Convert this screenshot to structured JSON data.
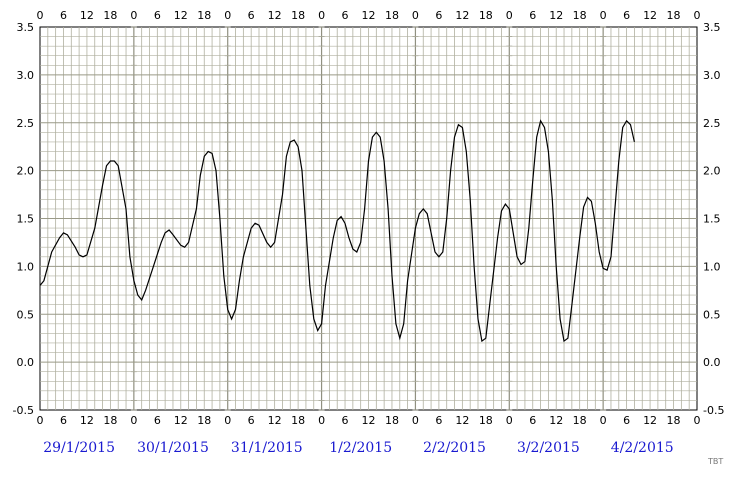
{
  "chart_data": {
    "type": "line",
    "title": "",
    "xlabel": "",
    "ylabel": "",
    "ylim": [
      -0.5,
      3.5
    ],
    "y_ticks": [
      "-0.5",
      "0.0",
      "0.5",
      "1.0",
      "1.5",
      "2.0",
      "2.5",
      "3.0",
      "3.5"
    ],
    "x_unit": "hours",
    "xlim": [
      0,
      168
    ],
    "hour_tick_labels": [
      "0",
      "6",
      "12",
      "18"
    ],
    "end_label": "0",
    "dates": [
      "29/1/2015",
      "30/1/2015",
      "31/1/2015",
      "1/2/2015",
      "2/2/2015",
      "3/2/2015",
      "4/2/2015"
    ],
    "grid": true,
    "colors": {
      "background": "#ffffff",
      "grid": "#b0b0a0",
      "line": "#000000",
      "dates": "#1a1ad0"
    },
    "series": [
      {
        "points": [
          [
            0,
            0.8
          ],
          [
            1,
            0.85
          ],
          [
            3,
            1.15
          ],
          [
            5,
            1.3
          ],
          [
            6,
            1.35
          ],
          [
            7,
            1.33
          ],
          [
            9,
            1.2
          ],
          [
            10,
            1.12
          ],
          [
            11,
            1.1
          ],
          [
            12,
            1.12
          ],
          [
            14,
            1.4
          ],
          [
            16,
            1.85
          ],
          [
            17,
            2.05
          ],
          [
            18,
            2.1
          ],
          [
            19,
            2.1
          ],
          [
            20,
            2.05
          ],
          [
            22,
            1.6
          ],
          [
            23,
            1.1
          ],
          [
            24,
            0.85
          ],
          [
            25,
            0.7
          ],
          [
            26,
            0.65
          ],
          [
            27,
            0.75
          ],
          [
            29,
            1.0
          ],
          [
            31,
            1.25
          ],
          [
            32,
            1.35
          ],
          [
            33,
            1.38
          ],
          [
            34,
            1.33
          ],
          [
            36,
            1.22
          ],
          [
            37,
            1.2
          ],
          [
            38,
            1.25
          ],
          [
            40,
            1.6
          ],
          [
            41,
            1.95
          ],
          [
            42,
            2.15
          ],
          [
            43,
            2.2
          ],
          [
            44,
            2.18
          ],
          [
            45,
            2.0
          ],
          [
            46,
            1.5
          ],
          [
            47,
            0.9
          ],
          [
            48,
            0.55
          ],
          [
            49,
            0.45
          ],
          [
            50,
            0.55
          ],
          [
            51,
            0.85
          ],
          [
            52,
            1.1
          ],
          [
            54,
            1.4
          ],
          [
            55,
            1.45
          ],
          [
            56,
            1.43
          ],
          [
            58,
            1.25
          ],
          [
            59,
            1.2
          ],
          [
            60,
            1.25
          ],
          [
            62,
            1.75
          ],
          [
            63,
            2.15
          ],
          [
            64,
            2.3
          ],
          [
            65,
            2.32
          ],
          [
            66,
            2.25
          ],
          [
            67,
            2.0
          ],
          [
            68,
            1.4
          ],
          [
            69,
            0.8
          ],
          [
            70,
            0.45
          ],
          [
            71,
            0.33
          ],
          [
            72,
            0.4
          ],
          [
            73,
            0.8
          ],
          [
            75,
            1.3
          ],
          [
            76,
            1.48
          ],
          [
            77,
            1.52
          ],
          [
            78,
            1.45
          ],
          [
            79,
            1.3
          ],
          [
            80,
            1.18
          ],
          [
            81,
            1.15
          ],
          [
            82,
            1.25
          ],
          [
            83,
            1.6
          ],
          [
            84,
            2.1
          ],
          [
            85,
            2.35
          ],
          [
            86,
            2.4
          ],
          [
            87,
            2.35
          ],
          [
            88,
            2.1
          ],
          [
            89,
            1.6
          ],
          [
            90,
            0.9
          ],
          [
            91,
            0.4
          ],
          [
            92,
            0.25
          ],
          [
            93,
            0.4
          ],
          [
            94,
            0.85
          ],
          [
            96,
            1.4
          ],
          [
            97,
            1.55
          ],
          [
            98,
            1.6
          ],
          [
            99,
            1.55
          ],
          [
            100,
            1.35
          ],
          [
            101,
            1.15
          ],
          [
            102,
            1.1
          ],
          [
            103,
            1.15
          ],
          [
            104,
            1.5
          ],
          [
            105,
            2.0
          ],
          [
            106,
            2.35
          ],
          [
            107,
            2.48
          ],
          [
            108,
            2.45
          ],
          [
            109,
            2.2
          ],
          [
            110,
            1.7
          ],
          [
            111,
            1.0
          ],
          [
            112,
            0.45
          ],
          [
            113,
            0.22
          ],
          [
            114,
            0.25
          ],
          [
            115,
            0.6
          ],
          [
            117,
            1.3
          ],
          [
            118,
            1.58
          ],
          [
            119,
            1.65
          ],
          [
            120,
            1.6
          ],
          [
            121,
            1.35
          ],
          [
            122,
            1.1
          ],
          [
            123,
            1.02
          ],
          [
            124,
            1.05
          ],
          [
            125,
            1.4
          ],
          [
            126,
            1.9
          ],
          [
            127,
            2.35
          ],
          [
            128,
            2.52
          ],
          [
            129,
            2.45
          ],
          [
            130,
            2.2
          ],
          [
            131,
            1.7
          ],
          [
            132,
            1.0
          ],
          [
            133,
            0.45
          ],
          [
            134,
            0.22
          ],
          [
            135,
            0.25
          ],
          [
            136,
            0.6
          ],
          [
            138,
            1.3
          ],
          [
            139,
            1.62
          ],
          [
            140,
            1.72
          ],
          [
            141,
            1.68
          ],
          [
            142,
            1.45
          ],
          [
            143,
            1.15
          ],
          [
            144,
            0.98
          ],
          [
            145,
            0.96
          ],
          [
            146,
            1.1
          ],
          [
            147,
            1.6
          ],
          [
            148,
            2.1
          ],
          [
            149,
            2.45
          ],
          [
            150,
            2.52
          ],
          [
            151,
            2.48
          ],
          [
            152,
            2.3
          ]
        ]
      }
    ]
  },
  "credit": "TBT"
}
